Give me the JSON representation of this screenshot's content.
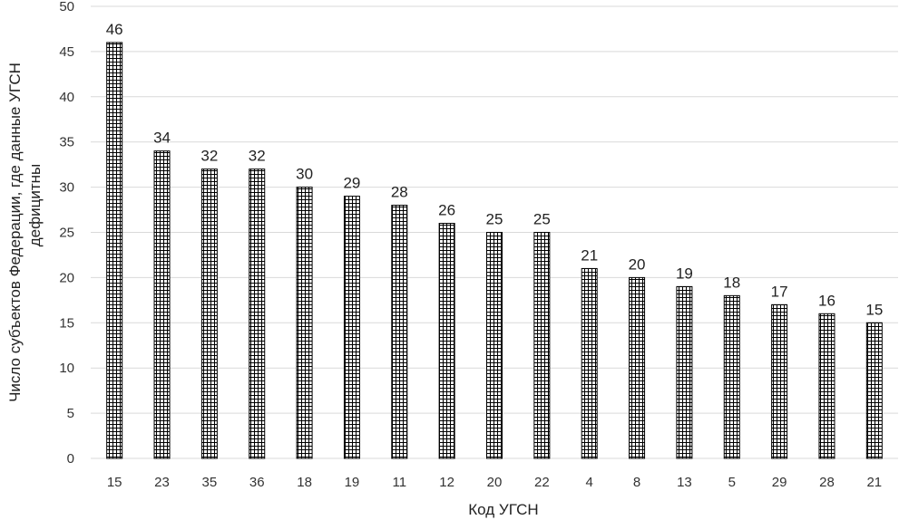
{
  "chart_data": {
    "type": "bar",
    "categories": [
      "15",
      "23",
      "35",
      "36",
      "18",
      "19",
      "11",
      "12",
      "20",
      "22",
      "4",
      "8",
      "13",
      "5",
      "29",
      "28",
      "21"
    ],
    "values": [
      46,
      34,
      32,
      32,
      30,
      29,
      28,
      26,
      25,
      25,
      21,
      20,
      19,
      18,
      17,
      16,
      15
    ],
    "title": "",
    "xlabel": "Код УГСН",
    "ylabel_lines": [
      "Число субъектов Федерации, где данные УГСН",
      "дефицитны"
    ],
    "ylim": [
      0,
      50
    ],
    "yticks": [
      0,
      5,
      10,
      15,
      20,
      25,
      30,
      35,
      40,
      45,
      50
    ],
    "grid": "horizontal",
    "legend": "none",
    "bar_fill": "crosshatch",
    "colors": {
      "bar_hatch": "#000000",
      "gridline": "#d9d9d9",
      "background": "#ffffff"
    }
  }
}
